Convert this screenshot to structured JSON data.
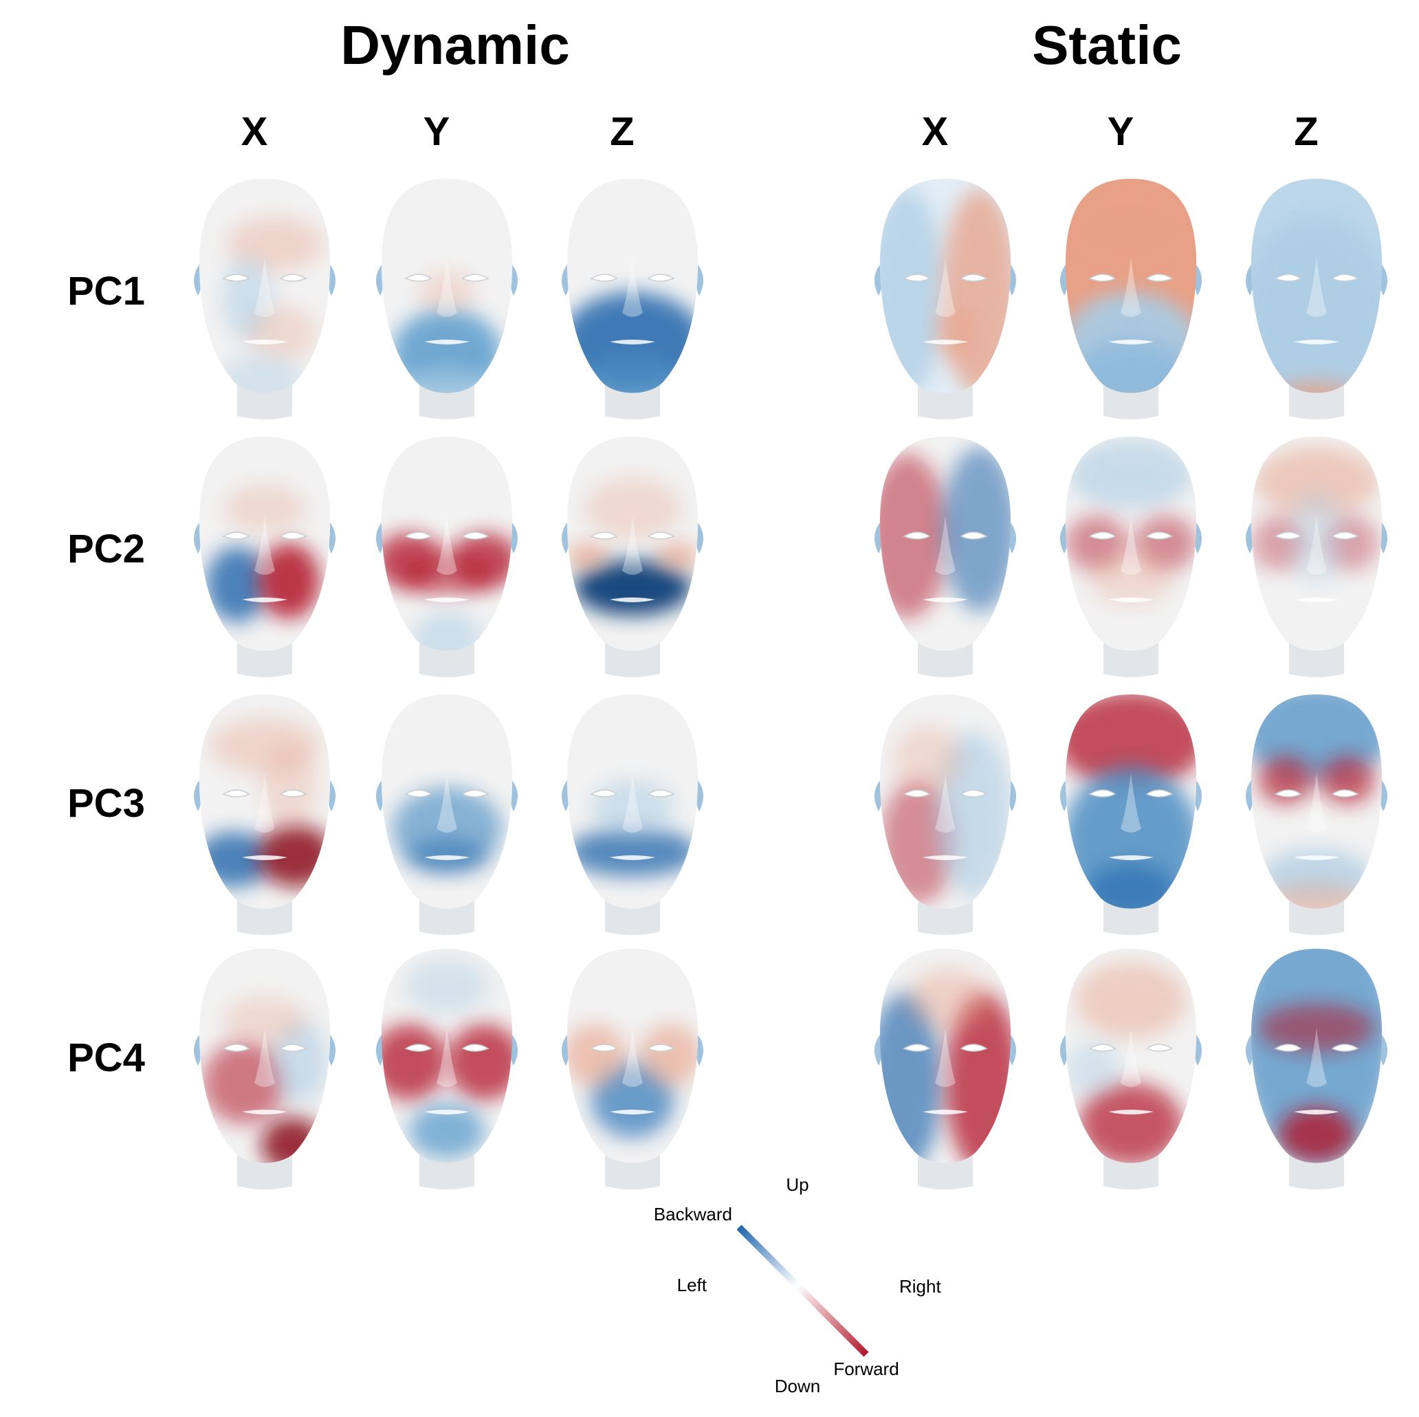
{
  "groups": [
    {
      "title": "Dynamic",
      "axes": [
        "X",
        "Y",
        "Z"
      ]
    },
    {
      "title": "Static",
      "axes": [
        "X",
        "Y",
        "Z"
      ]
    }
  ],
  "rows": [
    "PC1",
    "PC2",
    "PC3",
    "PC4"
  ],
  "legend": {
    "up": "Up",
    "down": "Down",
    "left": "Left",
    "right": "Right",
    "backward": "Backward",
    "forward": "Forward"
  },
  "colors": {
    "positive": "#b2182b",
    "negative": "#2166ac",
    "neutral": "#f2f2f2"
  }
}
